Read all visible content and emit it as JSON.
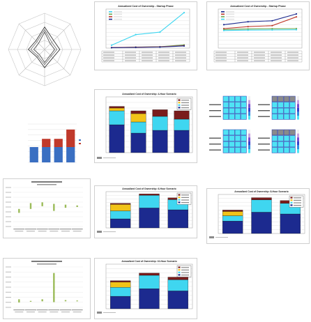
{
  "colors": {
    "navy": "#1c2a8f",
    "cyan": "#3fd6f0",
    "yellow": "#f2c318",
    "maroon": "#7a1c1c",
    "red": "#c0392b",
    "blue": "#3a6fc2",
    "green": "#6aa84f",
    "olive": "#9bbb59",
    "grid": "#d9d9d9",
    "heat_cyan": "#4fe3f5",
    "heat_blue": "#2233aa",
    "heat_grey": "#8a8a8a"
  },
  "chart_data": [
    {
      "id": "radar",
      "type": "radar",
      "title": "",
      "axes": 8,
      "rings": 4,
      "series": [
        {
          "values": [
            0.62,
            0.35,
            0.42,
            0.32,
            0.5,
            0.3,
            0.45,
            0.34
          ]
        },
        {
          "values": [
            0.55,
            0.28,
            0.34,
            0.26,
            0.42,
            0.26,
            0.38,
            0.3
          ]
        },
        {
          "values": [
            0.48,
            0.22,
            0.28,
            0.22,
            0.36,
            0.2,
            0.3,
            0.24
          ]
        }
      ]
    },
    {
      "id": "line_tco_1",
      "type": "line",
      "title": "Annualized Cost of Ownership - Startup Phase",
      "categories": [
        "",
        "",
        "",
        ""
      ],
      "ylim": [
        0,
        1100000
      ],
      "yticks": [
        0,
        100000,
        200000,
        300000,
        400000,
        500000,
        600000,
        700000,
        800000,
        900000,
        1000000
      ],
      "series": [
        {
          "name": "",
          "color": "#3fd6f0",
          "values": [
            80000,
            380000,
            450000,
            1000000
          ]
        },
        {
          "name": "",
          "color": "#6aa84f",
          "values": [
            10000,
            30000,
            40000,
            90000
          ]
        },
        {
          "name": "",
          "color": "#c0392b",
          "values": [
            15000,
            25000,
            35000,
            70000
          ]
        },
        {
          "name": "",
          "color": "#1c2a8f",
          "values": [
            12000,
            20000,
            30000,
            60000
          ]
        }
      ],
      "table_rows": 4,
      "table_cols": 5
    },
    {
      "id": "line_tco_2",
      "type": "line",
      "title": "Annualized Cost of Ownership - Startup Phase",
      "categories": [
        "",
        "",
        "",
        ""
      ],
      "ylim": [
        0,
        200000
      ],
      "series": [
        {
          "name": "",
          "color": "#1c2a8f",
          "values": [
            120000,
            135000,
            140000,
            175000
          ]
        },
        {
          "name": "",
          "color": "#c0392b",
          "values": [
            100000,
            110000,
            115000,
            160000
          ]
        },
        {
          "name": "",
          "color": "#6aa84f",
          "values": [
            95000,
            98000,
            99000,
            100000
          ]
        },
        {
          "name": "",
          "color": "#3fd6f0",
          "values": [
            90000,
            92000,
            93000,
            94000
          ]
        }
      ],
      "table_rows": 4,
      "table_cols": 5
    },
    {
      "id": "small_bars",
      "type": "bar",
      "title": "",
      "categories": [
        "",
        "",
        "",
        ""
      ],
      "ylim": [
        0,
        70
      ],
      "series": [
        {
          "name": "",
          "color": "#3a6fc2",
          "values": [
            28,
            28,
            28,
            28
          ]
        },
        {
          "name": "",
          "color": "#c0392b",
          "values": [
            0,
            15,
            15,
            32
          ]
        }
      ]
    },
    {
      "id": "stacked_4",
      "type": "bar",
      "title": "Annualized Cost of Ownership: 4-Hour Scenario",
      "categories": [
        "",
        "",
        "",
        ""
      ],
      "ylim": [
        0,
        100000
      ],
      "series": [
        {
          "name": "",
          "color": "#1c2a8f",
          "values": [
            50000,
            35000,
            40000,
            40000
          ]
        },
        {
          "name": "",
          "color": "#3fd6f0",
          "values": [
            25000,
            20000,
            25000,
            20000
          ]
        },
        {
          "name": "",
          "color": "#f2c318",
          "values": [
            5000,
            15000,
            0,
            0
          ]
        },
        {
          "name": "",
          "color": "#7a1c1c",
          "values": [
            3000,
            5000,
            12000,
            15000
          ]
        }
      ],
      "totals": [
        "",
        "",
        "",
        ""
      ]
    },
    {
      "id": "heatmaps",
      "type": "heatmap",
      "title": "",
      "grids": [
        {
          "rows": [
            [
              1,
              1,
              1,
              1
            ],
            [
              1,
              1,
              1,
              1
            ],
            [
              1,
              1,
              1,
              1
            ],
            [
              1,
              1,
              1,
              1
            ]
          ]
        },
        {
          "rows": [
            [
              2,
              2,
              2,
              2
            ],
            [
              1,
              1,
              1,
              1
            ],
            [
              1,
              1,
              1,
              1
            ],
            [
              1,
              1,
              1,
              1
            ]
          ]
        },
        {
          "rows": [
            [
              1,
              1,
              1,
              1
            ],
            [
              1,
              1,
              1,
              1
            ],
            [
              1,
              1,
              1,
              1
            ],
            [
              1,
              1,
              1,
              1
            ]
          ]
        },
        {
          "rows": [
            [
              2,
              2,
              2,
              2
            ],
            [
              1,
              1,
              1,
              1
            ],
            [
              1,
              1,
              1,
              1
            ],
            [
              1,
              1,
              1,
              1
            ]
          ]
        }
      ]
    },
    {
      "id": "dots_1",
      "type": "scatter",
      "title": "",
      "categories": [
        "",
        "",
        "",
        "",
        "",
        ""
      ],
      "ylim": [
        0,
        10
      ],
      "series": [
        {
          "name": "",
          "color": "#9bbb59",
          "ranges": [
            [
              3.5,
              4.5
            ],
            [
              4.5,
              6.0
            ],
            [
              5.2,
              6.2
            ],
            [
              4.0,
              5.8
            ],
            [
              4.8,
              5.6
            ],
            [
              5.0,
              5.4
            ]
          ]
        }
      ]
    },
    {
      "id": "stacked_3a",
      "type": "bar",
      "title": "Annualized Cost of Ownership: 6-Hour Scenario",
      "categories": [
        "",
        "",
        ""
      ],
      "ylim": [
        0,
        100000
      ],
      "series": [
        {
          "name": "",
          "color": "#1c2a8f",
          "values": [
            25000,
            55000,
            50000
          ]
        },
        {
          "name": "",
          "color": "#3fd6f0",
          "values": [
            22000,
            35000,
            28000
          ]
        },
        {
          "name": "",
          "color": "#f2c318",
          "values": [
            18000,
            0,
            0
          ]
        },
        {
          "name": "",
          "color": "#7a1c1c",
          "values": [
            3000,
            4000,
            5000
          ]
        }
      ]
    },
    {
      "id": "stacked_3b",
      "type": "bar",
      "title": "Annualized Cost of Ownership: 8-Hour Scenario",
      "categories": [
        "",
        "",
        ""
      ],
      "ylim": [
        0,
        110000
      ],
      "series": [
        {
          "name": "",
          "color": "#1c2a8f",
          "values": [
            35000,
            60000,
            55000
          ]
        },
        {
          "name": "",
          "color": "#3fd6f0",
          "values": [
            15000,
            35000,
            30000
          ]
        },
        {
          "name": "",
          "color": "#f2c318",
          "values": [
            12000,
            0,
            0
          ]
        },
        {
          "name": "",
          "color": "#7a1c1c",
          "values": [
            4000,
            6000,
            8000
          ]
        }
      ]
    },
    {
      "id": "dots_2",
      "type": "scatter",
      "title": "",
      "categories": [
        "",
        "",
        "",
        "",
        "",
        ""
      ],
      "ylim": [
        0,
        10
      ],
      "series": [
        {
          "name": "",
          "color": "#9bbb59",
          "ranges": [
            [
              1.2,
              2.0
            ],
            [
              1.4,
              1.6
            ],
            [
              1.5,
              2.0
            ],
            [
              1.3,
              8.5
            ],
            [
              1.5,
              1.8
            ],
            [
              1.6,
              1.7
            ]
          ]
        }
      ]
    },
    {
      "id": "stacked_3c",
      "type": "bar",
      "title": "Annualized Cost of Ownership: 10-Hour Scenario",
      "categories": [
        "",
        "",
        ""
      ],
      "ylim": [
        0,
        100000
      ],
      "series": [
        {
          "name": "",
          "color": "#1c2a8f",
          "values": [
            28000,
            45000,
            40000
          ]
        },
        {
          "name": "",
          "color": "#3fd6f0",
          "values": [
            20000,
            30000,
            25000
          ]
        },
        {
          "name": "",
          "color": "#f2c318",
          "values": [
            12000,
            0,
            0
          ]
        },
        {
          "name": "",
          "color": "#7a1c1c",
          "values": [
            3000,
            5000,
            6000
          ]
        }
      ]
    }
  ]
}
